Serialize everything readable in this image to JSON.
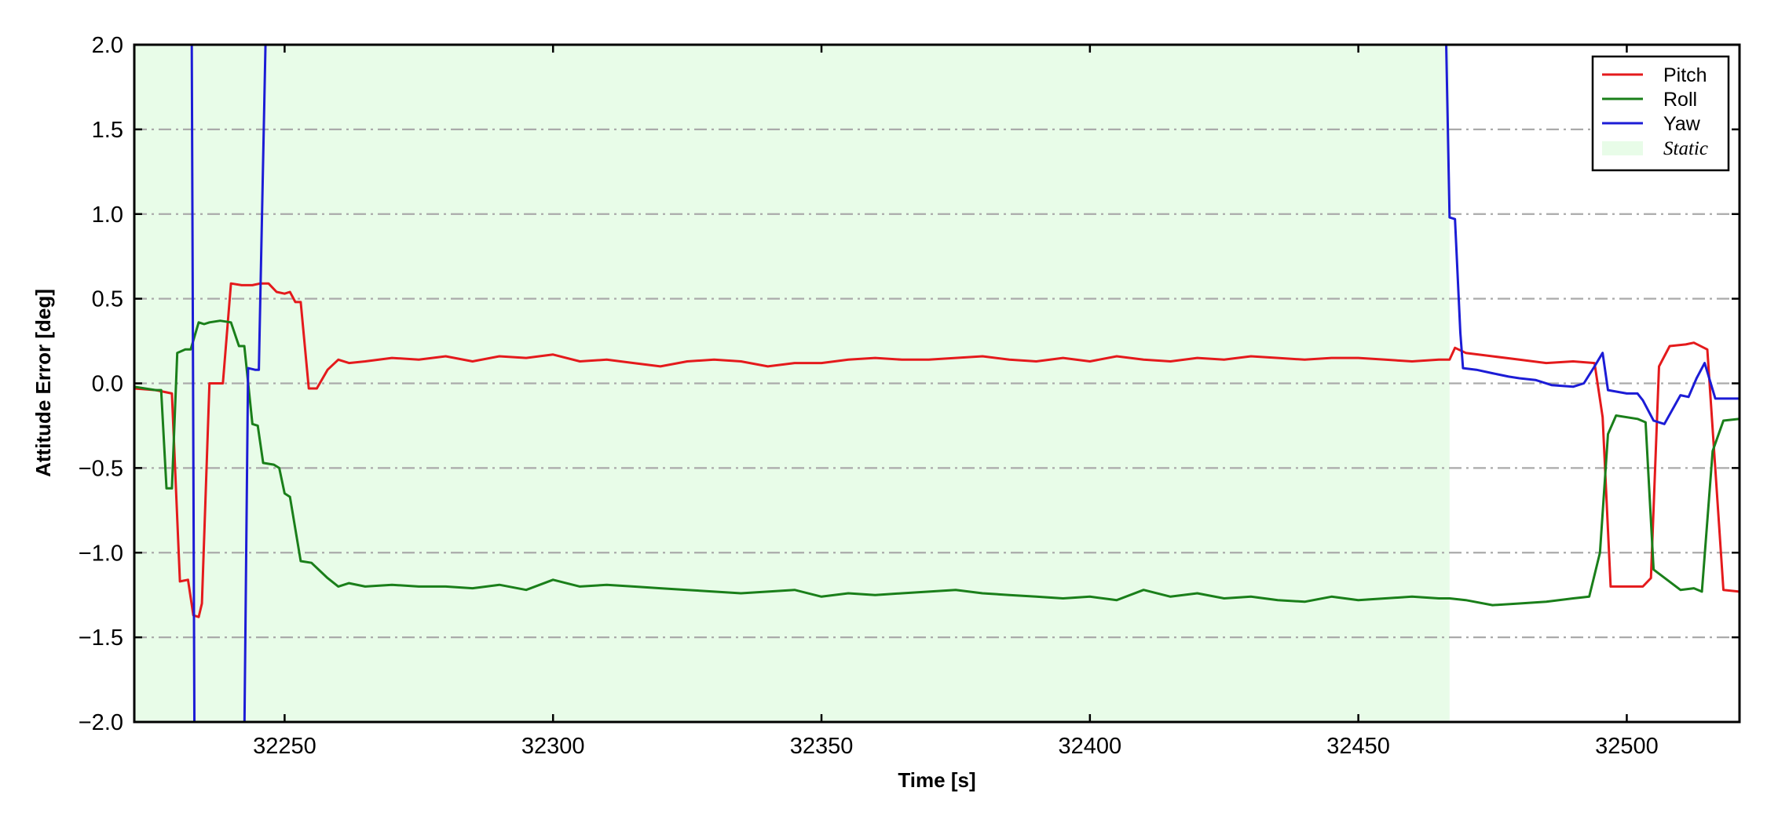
{
  "chart_data": {
    "type": "line",
    "title": "",
    "xlabel": "Time [s]",
    "ylabel": "Attitude Error [deg]",
    "xlim": [
      32222,
      32521
    ],
    "ylim": [
      -2.0,
      2.0
    ],
    "xticks": [
      32250,
      32300,
      32350,
      32400,
      32450,
      32500
    ],
    "xtick_labels": [
      "32250",
      "32300",
      "32350",
      "32400",
      "32450",
      "32500"
    ],
    "yticks": [
      -2.0,
      -1.5,
      -1.0,
      -0.5,
      0.0,
      0.5,
      1.0,
      1.5,
      2.0
    ],
    "ytick_labels": [
      "−2.0",
      "−1.5",
      "−1.0",
      "−0.5",
      "0.0",
      "0.5",
      "1.0",
      "1.5",
      "2.0"
    ],
    "grid": "horizontal dash-dot",
    "legend_position": "top-right",
    "static_region": {
      "label": "Static",
      "x_start": 32222,
      "x_end": 32467,
      "color": "#e8fce8"
    },
    "series": [
      {
        "name": "Pitch",
        "color": "#e41a1c",
        "x": [
          32222,
          32226,
          32229,
          32230.5,
          32232,
          32233,
          32234,
          32234.6,
          32236,
          32237.5,
          32238.5,
          32240,
          32242,
          32244,
          32245.5,
          32247,
          32248.5,
          32250,
          32251,
          32252,
          32253,
          32254.5,
          32256,
          32258,
          32260,
          32262,
          32265,
          32270,
          32275,
          32280,
          32285,
          32290,
          32295,
          32300,
          32305,
          32310,
          32315,
          32320,
          32325,
          32330,
          32335,
          32340,
          32345,
          32350,
          32355,
          32360,
          32365,
          32370,
          32375,
          32380,
          32385,
          32390,
          32395,
          32400,
          32405,
          32410,
          32415,
          32420,
          32425,
          32430,
          32435,
          32440,
          32445,
          32450,
          32455,
          32460,
          32465,
          32467,
          32468,
          32470,
          32475,
          32480,
          32485,
          32490,
          32494,
          32495.5,
          32497,
          32500,
          32503,
          32504.5,
          32506,
          32508,
          32511,
          32512.5,
          32515,
          32518,
          32521
        ],
        "y": [
          -0.03,
          -0.04,
          -0.06,
          -1.17,
          -1.16,
          -1.37,
          -1.38,
          -1.3,
          0.0,
          0.0,
          0.0,
          0.59,
          0.58,
          0.58,
          0.59,
          0.59,
          0.54,
          0.53,
          0.54,
          0.48,
          0.48,
          -0.03,
          -0.03,
          0.08,
          0.14,
          0.12,
          0.13,
          0.15,
          0.14,
          0.16,
          0.13,
          0.16,
          0.15,
          0.17,
          0.13,
          0.14,
          0.12,
          0.1,
          0.13,
          0.14,
          0.13,
          0.1,
          0.12,
          0.12,
          0.14,
          0.15,
          0.14,
          0.14,
          0.15,
          0.16,
          0.14,
          0.13,
          0.15,
          0.13,
          0.16,
          0.14,
          0.13,
          0.15,
          0.14,
          0.16,
          0.15,
          0.14,
          0.15,
          0.15,
          0.14,
          0.13,
          0.14,
          0.14,
          0.21,
          0.18,
          0.16,
          0.14,
          0.12,
          0.13,
          0.12,
          -0.2,
          -1.2,
          -1.2,
          -1.2,
          -1.15,
          0.1,
          0.22,
          0.23,
          0.24,
          0.2,
          -1.22,
          -1.23
        ]
      },
      {
        "name": "Roll",
        "color": "#1a7f1a",
        "x": [
          32222,
          32226,
          32227,
          32228,
          32229,
          32230,
          32231.5,
          32232.5,
          32234,
          32235,
          32236,
          32238,
          32240,
          32241.5,
          32242.5,
          32244,
          32245,
          32246,
          32248,
          32249,
          32250,
          32251,
          32253,
          32255,
          32258,
          32260,
          32262,
          32265,
          32270,
          32275,
          32280,
          32285,
          32290,
          32295,
          32300,
          32305,
          32310,
          32315,
          32320,
          32325,
          32330,
          32335,
          32340,
          32345,
          32350,
          32355,
          32360,
          32365,
          32370,
          32375,
          32380,
          32385,
          32390,
          32395,
          32400,
          32405,
          32410,
          32415,
          32420,
          32425,
          32430,
          32435,
          32440,
          32445,
          32450,
          32455,
          32460,
          32465,
          32467,
          32470,
          32475,
          32480,
          32485,
          32490,
          32493,
          32495,
          32496.5,
          32498,
          32502,
          32503.5,
          32505,
          32510,
          32512.5,
          32514,
          32516,
          32518,
          32521
        ],
        "y": [
          -0.02,
          -0.04,
          -0.04,
          -0.62,
          -0.62,
          0.18,
          0.2,
          0.2,
          0.36,
          0.35,
          0.36,
          0.37,
          0.36,
          0.22,
          0.22,
          -0.24,
          -0.25,
          -0.47,
          -0.48,
          -0.5,
          -0.65,
          -0.67,
          -1.05,
          -1.06,
          -1.15,
          -1.2,
          -1.18,
          -1.2,
          -1.19,
          -1.2,
          -1.2,
          -1.21,
          -1.19,
          -1.22,
          -1.16,
          -1.2,
          -1.19,
          -1.2,
          -1.21,
          -1.22,
          -1.23,
          -1.24,
          -1.23,
          -1.22,
          -1.26,
          -1.24,
          -1.25,
          -1.24,
          -1.23,
          -1.22,
          -1.24,
          -1.25,
          -1.26,
          -1.27,
          -1.26,
          -1.28,
          -1.22,
          -1.26,
          -1.24,
          -1.27,
          -1.26,
          -1.28,
          -1.29,
          -1.26,
          -1.28,
          -1.27,
          -1.26,
          -1.27,
          -1.27,
          -1.28,
          -1.31,
          -1.3,
          -1.29,
          -1.27,
          -1.26,
          -1.0,
          -0.3,
          -0.19,
          -0.21,
          -0.23,
          -1.1,
          -1.22,
          -1.21,
          -1.23,
          -0.4,
          -0.22,
          -0.21
        ]
      },
      {
        "name": "Yaw",
        "color": "#1c1cd6",
        "x": [
          32232.7,
          32233.2,
          32242.5,
          32243.2,
          32244.5,
          32245.2,
          32246.5,
          32466.3,
          32467,
          32468,
          32469,
          32469.5,
          32472,
          32475,
          32478,
          32480,
          32483,
          32486,
          32490,
          32492,
          32494,
          32495.5,
          32496.5,
          32500,
          32502,
          32503,
          32505,
          32507,
          32510,
          32511.5,
          32513,
          32514.5,
          32516.5,
          32521
        ],
        "y": [
          2.1,
          -2.1,
          -2.1,
          0.09,
          0.08,
          0.08,
          2.1,
          2.1,
          0.98,
          0.97,
          0.3,
          0.09,
          0.08,
          0.06,
          0.04,
          0.03,
          0.02,
          -0.01,
          -0.02,
          0.0,
          0.1,
          0.18,
          -0.04,
          -0.06,
          -0.06,
          -0.1,
          -0.22,
          -0.24,
          -0.07,
          -0.08,
          0.03,
          0.12,
          -0.09,
          -0.09
        ]
      }
    ]
  }
}
